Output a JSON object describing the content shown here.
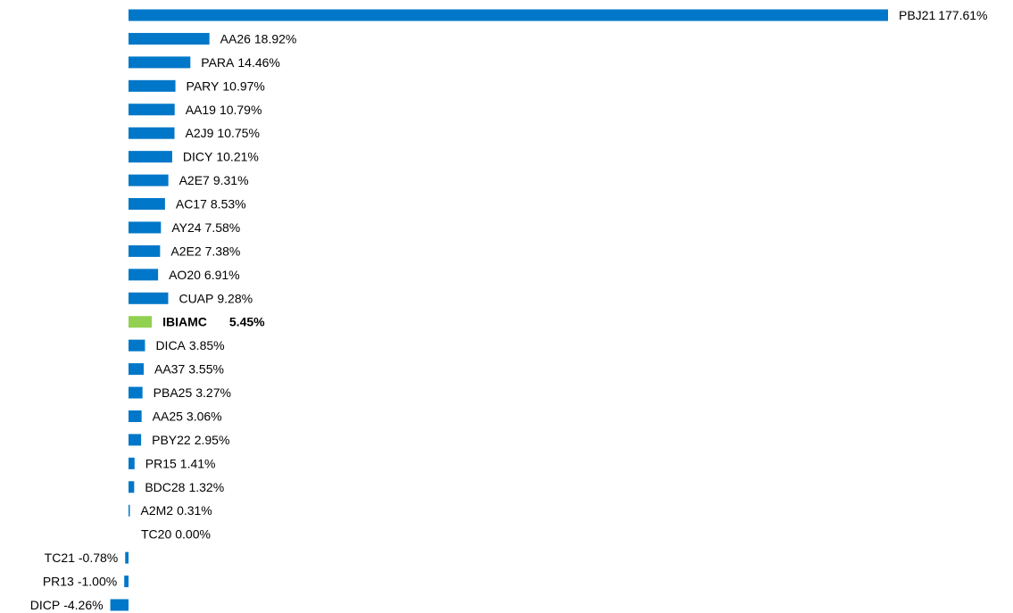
{
  "chart_data": {
    "type": "bar",
    "orientation": "horizontal",
    "categories": [
      "PBJ21",
      "AA26",
      "PARA",
      "PARY",
      "AA19",
      "A2J9",
      "DICY",
      "A2E7",
      "AC17",
      "AY24",
      "A2E2",
      "AO20",
      "CUAP",
      "IBIAMC",
      "DICA",
      "AA37",
      "PBA25",
      "AA25",
      "PBY22",
      "PR15",
      "BDC28",
      "A2M2",
      "TC20",
      "TC21",
      "PR13",
      "DICP"
    ],
    "values": [
      177.61,
      18.92,
      14.46,
      10.97,
      10.79,
      10.75,
      10.21,
      9.31,
      8.53,
      7.58,
      7.38,
      6.91,
      9.28,
      5.45,
      3.85,
      3.55,
      3.27,
      3.06,
      2.95,
      1.41,
      1.32,
      0.31,
      0.0,
      -0.78,
      -1.0,
      -4.26
    ],
    "value_labels": [
      "177.61%",
      "18.92%",
      "14.46%",
      "10.97%",
      "10.79%",
      "10.75%",
      "10.21%",
      "9.31%",
      "8.53%",
      "7.58%",
      "7.38%",
      "6.91%",
      "9.28%",
      "5.45%",
      "3.85%",
      "3.55%",
      "3.27%",
      "3.06%",
      "2.95%",
      "1.41%",
      "1.32%",
      "0.31%",
      "0.00%",
      "-0.78%",
      "-1.00%",
      "-4.26%"
    ],
    "color": "#0077c8",
    "highlight": "IBIAMC",
    "highlight_color": "#92d050"
  }
}
